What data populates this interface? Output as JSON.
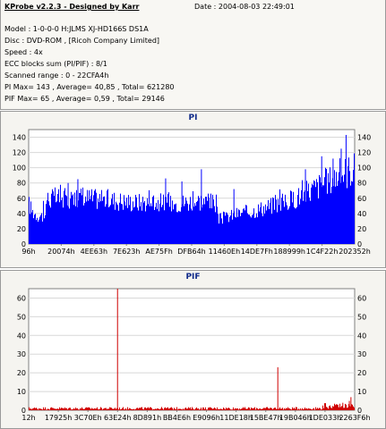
{
  "header": {
    "title": "KProbe v2.2.3 - Designed by Karr",
    "date": "Date : 2004-08-03 22:49:01",
    "lines": [
      "Model : 1-0-0-0 H:JLMS    XJ-HD166S    DS1A",
      "Disc : DVD-ROM ,  [Ricoh Company Limited]",
      "Speed : 4x",
      "ECC blocks sum (PI/PIF) : 8/1",
      "Scanned range : 0 - 22CFA4h",
      "PI Max= 143 , Average= 40,85 , Total= 621280",
      "PIF Max= 65 , Average= 0,59 , Total= 29146"
    ]
  },
  "chart_data": [
    {
      "type": "area",
      "title": "PI",
      "color": "#0000ff",
      "ylim": [
        0,
        150
      ],
      "yticks": [
        0,
        20,
        40,
        60,
        80,
        100,
        120,
        140
      ],
      "grid": true,
      "xtick_labels": [
        "96h",
        "20074h",
        "4EE63h",
        "7E623h",
        "AE75Fh",
        "DFB64h",
        "11460Eh",
        "14DE7Fh",
        "188999h",
        "1C4F22h",
        "202352h"
      ],
      "profile": [
        [
          0.0,
          55
        ],
        [
          0.01,
          45
        ],
        [
          0.025,
          40
        ],
        [
          0.05,
          38
        ],
        [
          0.052,
          62
        ],
        [
          0.08,
          64
        ],
        [
          0.12,
          63
        ],
        [
          0.16,
          65
        ],
        [
          0.2,
          63
        ],
        [
          0.24,
          62
        ],
        [
          0.28,
          60
        ],
        [
          0.32,
          58
        ],
        [
          0.36,
          58
        ],
        [
          0.4,
          58
        ],
        [
          0.44,
          56
        ],
        [
          0.48,
          58
        ],
        [
          0.52,
          60
        ],
        [
          0.56,
          58
        ],
        [
          0.577,
          56
        ],
        [
          0.58,
          34
        ],
        [
          0.6,
          36
        ],
        [
          0.64,
          42
        ],
        [
          0.68,
          45
        ],
        [
          0.72,
          50
        ],
        [
          0.76,
          55
        ],
        [
          0.8,
          60
        ],
        [
          0.84,
          68
        ],
        [
          0.88,
          78
        ],
        [
          0.92,
          88
        ],
        [
          0.96,
          98
        ],
        [
          1.0,
          105
        ]
      ],
      "spikes": [
        [
          0.53,
          98
        ],
        [
          0.47,
          82
        ],
        [
          0.63,
          72
        ],
        [
          0.975,
          143
        ],
        [
          0.96,
          125
        ],
        [
          0.935,
          112
        ],
        [
          0.15,
          85
        ],
        [
          0.12,
          80
        ],
        [
          0.42,
          86
        ],
        [
          0.85,
          98
        ],
        [
          0.9,
          115
        ]
      ]
    },
    {
      "type": "line",
      "title": "PIF",
      "color": "#d00000",
      "ylim": [
        0,
        65
      ],
      "yticks": [
        0,
        10,
        20,
        30,
        40,
        50,
        60
      ],
      "grid": true,
      "xtick_labels": [
        "12h",
        "17925h",
        "3C70Eh",
        "63E24h",
        "8D891h",
        "BB4E6h",
        "E9096h",
        "11DE18h",
        "15BE47h",
        "19B046h",
        "1DE033h",
        "2263F6h"
      ],
      "baseline": 1,
      "spikes": [
        [
          0.272,
          65
        ],
        [
          0.765,
          23
        ],
        [
          0.99,
          7
        ],
        [
          0.985,
          5
        ],
        [
          0.965,
          4
        ],
        [
          0.95,
          3
        ]
      ]
    }
  ]
}
